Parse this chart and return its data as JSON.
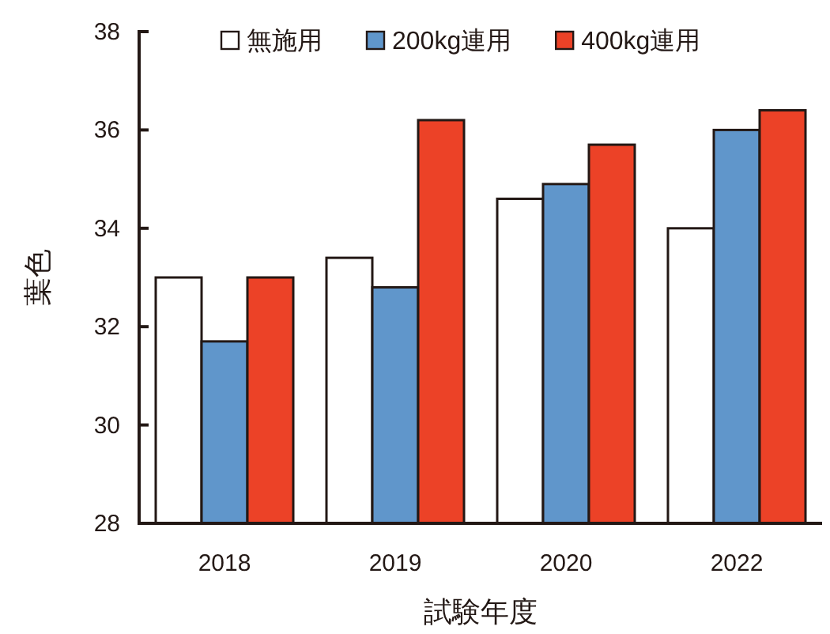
{
  "chart_data": {
    "type": "bar",
    "xlabel": "試験年度",
    "ylabel": "葉色",
    "categories": [
      "2018",
      "2019",
      "2020",
      "2022"
    ],
    "series": [
      {
        "name": "無施用",
        "color": "#ffffff",
        "values": [
          33.0,
          33.4,
          34.6,
          34.0
        ]
      },
      {
        "name": "200kg連用",
        "color": "#6096cb",
        "values": [
          31.7,
          32.8,
          34.9,
          36.0
        ]
      },
      {
        "name": "400kg連用",
        "color": "#ec4227",
        "values": [
          33.0,
          36.2,
          35.7,
          36.4
        ]
      }
    ],
    "ylim": [
      28,
      38
    ],
    "yticks": [
      28,
      30,
      32,
      34,
      36,
      38
    ],
    "legend": "top",
    "grid": false
  }
}
